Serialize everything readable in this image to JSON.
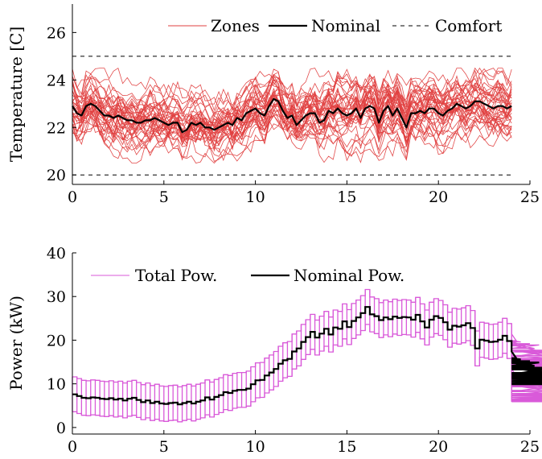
{
  "colors": {
    "zones": "#e04040",
    "nominal": "#000000",
    "comfort": "#000000",
    "total_power": "#d95ad9",
    "nominal_power": "#000000"
  },
  "chart_data": [
    {
      "type": "line",
      "ylabel": "Temperature [C]",
      "xlim": [
        0,
        25
      ],
      "ylim": [
        19.6,
        27.2
      ],
      "xticks": [
        0,
        5,
        10,
        15,
        20,
        25
      ],
      "yticks": [
        20,
        22,
        24,
        26
      ],
      "legend": {
        "placement": "top-right",
        "entries": [
          "Zones",
          "Nominal",
          "Comfort"
        ]
      },
      "comfort_bounds": [
        20,
        25
      ],
      "zones": {
        "name": "Zones",
        "count": 40,
        "x_start": 0,
        "x_end": 24,
        "step": 0.25,
        "range": [
          20.5,
          24.5
        ]
      },
      "series": [
        {
          "name": "Nominal",
          "x_step": 0.25,
          "values": [
            22.9,
            22.6,
            22.5,
            22.9,
            23.0,
            22.9,
            22.7,
            22.5,
            22.5,
            22.4,
            22.5,
            22.4,
            22.3,
            22.3,
            22.2,
            22.2,
            22.3,
            22.3,
            22.4,
            22.3,
            22.2,
            22.1,
            22.2,
            22.2,
            21.8,
            21.9,
            22.2,
            22.1,
            22.2,
            22.0,
            22.0,
            21.9,
            22.0,
            22.1,
            22.2,
            22.1,
            22.4,
            22.3,
            22.6,
            22.7,
            22.8,
            22.6,
            22.5,
            22.9,
            23.2,
            23.1,
            22.7,
            22.4,
            22.5,
            22.1,
            22.3,
            22.5,
            22.6,
            22.6,
            22.2,
            22.3,
            22.7,
            22.6,
            22.8,
            22.6,
            22.5,
            22.6,
            22.8,
            22.4,
            22.8,
            22.9,
            22.8,
            22.2,
            22.7,
            22.9,
            22.5,
            22.8,
            22.4,
            22.0,
            22.6,
            22.6,
            22.7,
            22.6,
            22.8,
            22.8,
            22.6,
            22.5,
            22.7,
            22.8,
            23.0,
            22.9,
            22.8,
            22.9,
            23.1,
            23.1,
            23.0,
            22.9,
            22.8,
            22.9,
            22.9,
            22.8,
            22.9
          ]
        }
      ]
    },
    {
      "type": "line",
      "ylabel": "Power (kW)",
      "xlim": [
        0,
        25
      ],
      "ylim": [
        -1.5,
        40
      ],
      "xticks": [
        0,
        5,
        10,
        15,
        20,
        25
      ],
      "yticks": [
        0,
        10,
        20,
        30,
        40
      ],
      "legend": {
        "placement": "top-left",
        "entries": [
          "Total Pow.",
          "Nominal Pow."
        ]
      },
      "series": [
        {
          "name": "Nominal Pow.",
          "x_step": 0.25,
          "band_halfwidth": 4,
          "values": [
            7.6,
            7.2,
            6.8,
            6.7,
            6.9,
            6.8,
            6.6,
            6.5,
            6.7,
            6.4,
            6.6,
            6.2,
            6.6,
            6.8,
            6.3,
            5.8,
            6.2,
            5.6,
            5.9,
            5.5,
            5.4,
            5.6,
            5.7,
            5.3,
            5.6,
            5.9,
            5.5,
            5.9,
            6.2,
            6.9,
            6.4,
            7.0,
            7.4,
            8.1,
            7.9,
            8.4,
            8.6,
            8.6,
            8.9,
            9.9,
            10.8,
            10.9,
            11.9,
            12.6,
            13.4,
            14.6,
            15.4,
            15.7,
            17.4,
            18.1,
            19.6,
            20.7,
            21.9,
            20.6,
            21.5,
            22.6,
            21.3,
            22.9,
            22.6,
            24.3,
            23.0,
            24.4,
            25.2,
            26.2,
            27.6,
            25.9,
            25.5,
            24.6,
            25.2,
            24.8,
            25.4,
            25.1,
            25.3,
            25.2,
            24.7,
            25.8,
            24.3,
            22.9,
            24.7,
            25.5,
            25.1,
            24.1,
            22.4,
            23.3,
            23.1,
            23.4,
            23.9,
            22.8,
            18.1,
            20.1,
            19.9,
            19.6,
            19.7,
            20.1,
            21.0,
            19.8,
            17.4,
            15.9,
            15.6,
            14.7,
            15.2,
            14.1,
            14.9,
            13.3,
            13.7,
            12.2,
            13.6,
            12.5,
            12.5,
            11.3,
            11.8,
            11.7,
            11.2,
            11.4,
            11.2,
            10.9,
            10.4,
            10.3,
            10.6,
            10.3,
            10.4,
            10.6,
            10.1,
            10.9,
            9.9,
            10.0
          ]
        }
      ]
    }
  ]
}
